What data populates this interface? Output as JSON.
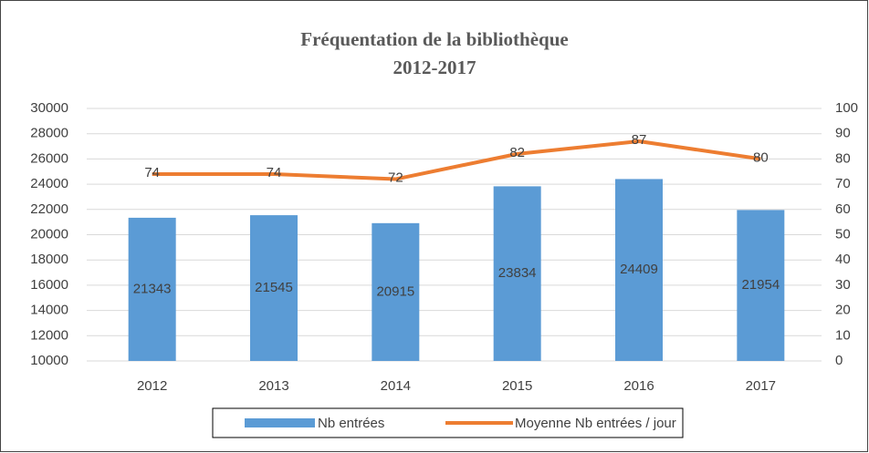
{
  "chart_data": {
    "type": "bar-line",
    "title": "Fréquentation de la bibliothèque",
    "subtitle": "2012-2017",
    "categories": [
      "2012",
      "2013",
      "2014",
      "2015",
      "2016",
      "2017"
    ],
    "series": [
      {
        "name": "Nb entrées",
        "type": "bar",
        "color": "#5b9bd5",
        "values": [
          21343,
          21545,
          20915,
          23834,
          24409,
          21954
        ]
      },
      {
        "name": "Moyenne Nb entrées / jour",
        "type": "line",
        "axis": "y2",
        "color": "#ed7d31",
        "values": [
          74,
          74,
          72,
          82,
          87,
          80
        ]
      }
    ],
    "ylim": [
      10000,
      30000
    ],
    "yticks": [
      10000,
      12000,
      14000,
      16000,
      18000,
      20000,
      22000,
      24000,
      26000,
      28000,
      30000
    ],
    "y2lim": [
      0,
      100
    ],
    "y2ticks": [
      0,
      10,
      20,
      30,
      40,
      50,
      60,
      70,
      80,
      90,
      100
    ],
    "grid": true,
    "legend": "bottom"
  }
}
